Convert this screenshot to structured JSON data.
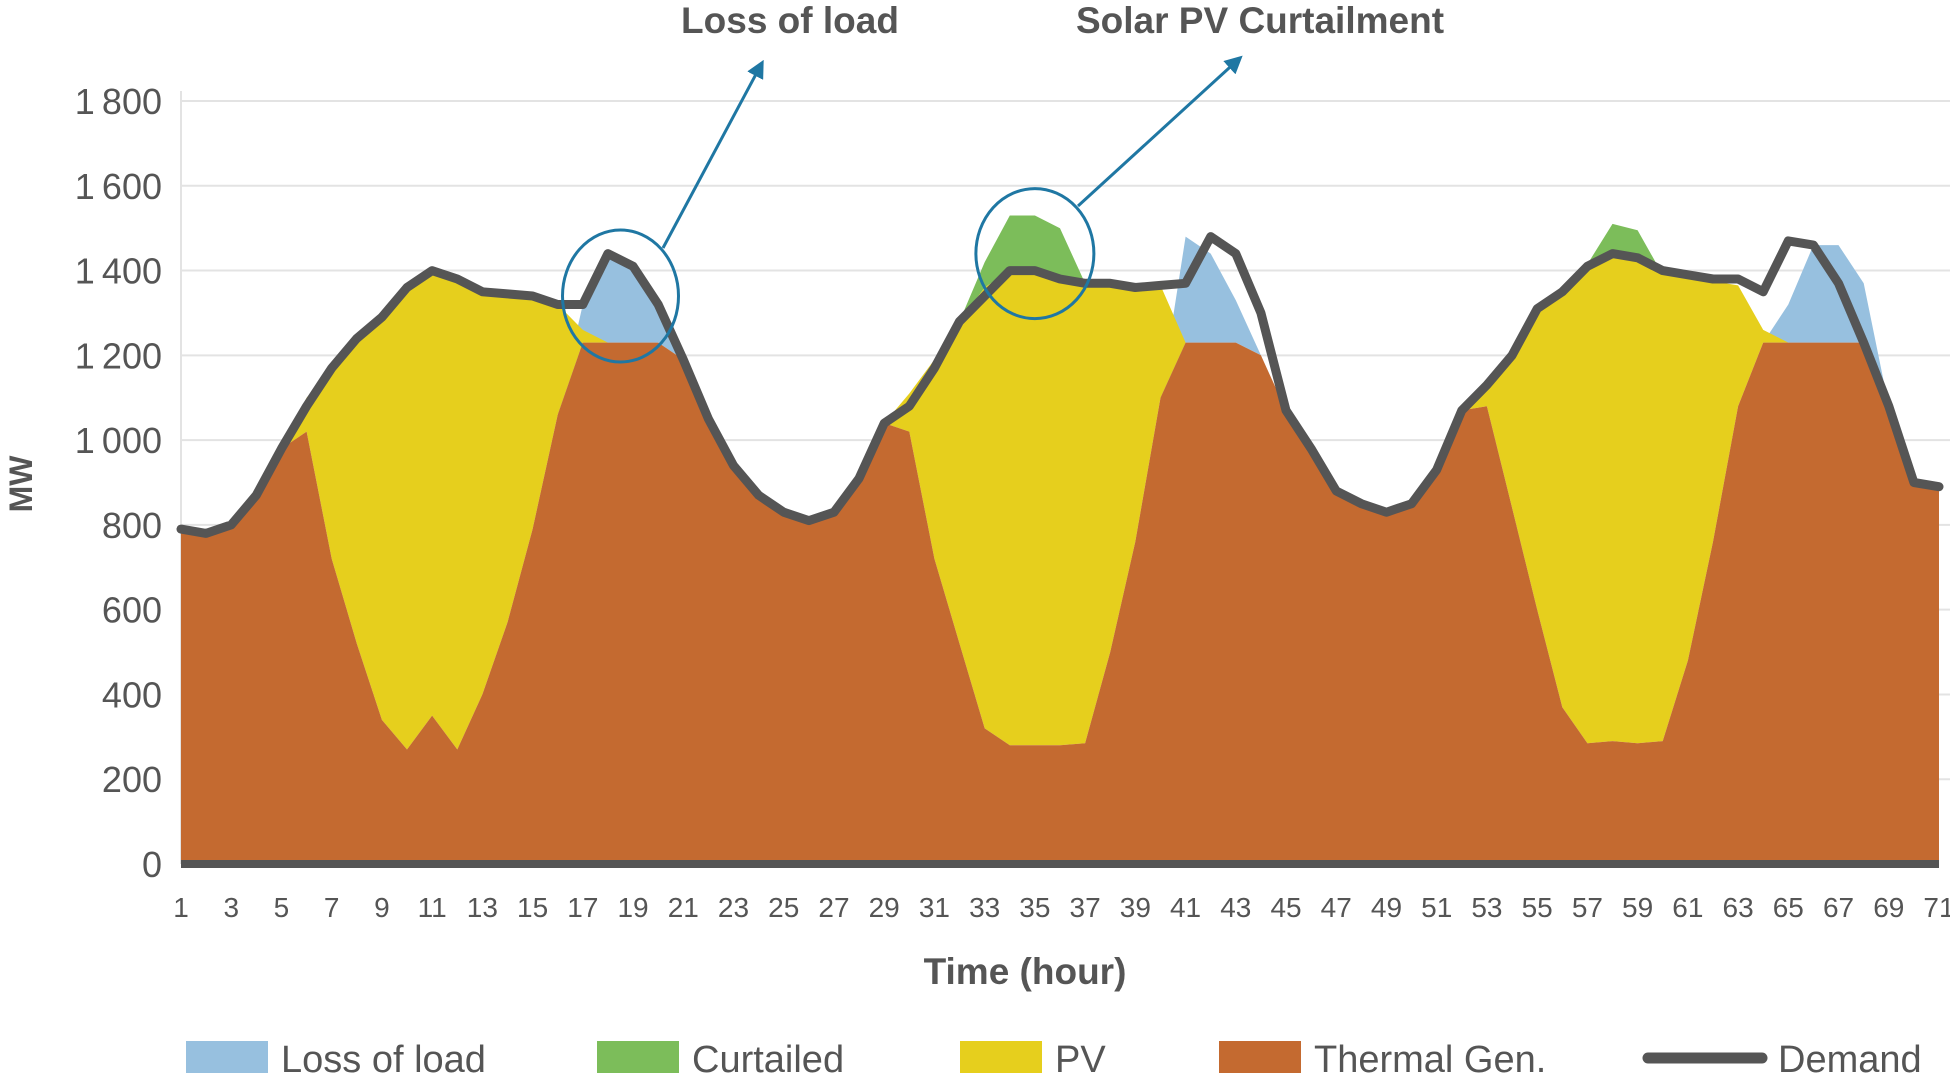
{
  "chart_data": {
    "type": "area",
    "xlabel": "Time (hour)",
    "ylabel": "MW",
    "xlim": [
      1,
      71
    ],
    "ylim": [
      0,
      1800
    ],
    "y_ticks": [
      0,
      200,
      400,
      600,
      800,
      1000,
      1200,
      1400,
      1600,
      1800
    ],
    "x_ticks": [
      1,
      3,
      5,
      7,
      9,
      11,
      13,
      15,
      17,
      19,
      21,
      23,
      25,
      27,
      29,
      31,
      33,
      35,
      37,
      39,
      41,
      43,
      45,
      47,
      49,
      51,
      53,
      55,
      57,
      59,
      61,
      63,
      65,
      67,
      69,
      71
    ],
    "grid": "horizontal",
    "legend_position": "bottom",
    "annotations": [
      {
        "text": "Loss of load",
        "x": 18.5,
        "y": 1340
      },
      {
        "text": "Solar PV Curtailment",
        "x": 35,
        "y": 1440
      }
    ],
    "x": [
      1,
      2,
      3,
      4,
      5,
      6,
      7,
      8,
      9,
      10,
      11,
      12,
      13,
      14,
      15,
      16,
      17,
      18,
      19,
      20,
      21,
      22,
      23,
      24,
      25,
      26,
      27,
      28,
      29,
      30,
      31,
      32,
      33,
      34,
      35,
      36,
      37,
      38,
      39,
      40,
      41,
      42,
      43,
      44,
      45,
      46,
      47,
      48,
      49,
      50,
      51,
      52,
      53,
      54,
      55,
      56,
      57,
      58,
      59,
      60,
      61,
      62,
      63,
      64,
      65,
      66,
      67,
      68,
      69,
      70,
      71
    ],
    "series": [
      {
        "name": "Thermal Gen.",
        "color": "#c46a30",
        "values": [
          790,
          780,
          800,
          870,
          980,
          1020,
          720,
          520,
          340,
          270,
          350,
          270,
          400,
          570,
          790,
          1060,
          1230,
          1230,
          1230,
          1230,
          1190,
          1050,
          940,
          870,
          830,
          810,
          830,
          910,
          1040,
          1020,
          720,
          520,
          320,
          280,
          280,
          280,
          285,
          500,
          760,
          1100,
          1230,
          1230,
          1230,
          1200,
          1070,
          980,
          880,
          850,
          830,
          850,
          930,
          1070,
          1080,
          840,
          600,
          370,
          285,
          290,
          285,
          290,
          480,
          760,
          1080,
          1230,
          1230,
          1230,
          1230,
          1230,
          1080,
          900,
          890
        ]
      },
      {
        "name": "PV",
        "color": "#e6cf1d",
        "values": [
          0,
          0,
          0,
          0,
          0,
          80,
          450,
          720,
          960,
          1090,
          1050,
          1110,
          950,
          780,
          550,
          260,
          30,
          0,
          0,
          0,
          0,
          0,
          0,
          0,
          0,
          0,
          0,
          0,
          0,
          90,
          470,
          760,
          1040,
          1120,
          1120,
          1100,
          1085,
          870,
          600,
          265,
          0,
          0,
          0,
          0,
          0,
          0,
          0,
          0,
          0,
          0,
          0,
          0,
          50,
          360,
          710,
          980,
          1130,
          1150,
          1140,
          1100,
          905,
          615,
          285,
          30,
          0,
          0,
          0,
          0,
          0,
          0,
          0
        ]
      },
      {
        "name": "Curtailed",
        "color": "#7cbd5a",
        "values": [
          0,
          0,
          0,
          0,
          0,
          0,
          0,
          0,
          0,
          0,
          0,
          0,
          0,
          0,
          0,
          0,
          0,
          0,
          0,
          0,
          0,
          0,
          0,
          0,
          0,
          0,
          0,
          0,
          0,
          0,
          0,
          0,
          60,
          130,
          130,
          120,
          0,
          0,
          0,
          0,
          0,
          0,
          0,
          0,
          0,
          0,
          0,
          0,
          0,
          0,
          0,
          0,
          0,
          0,
          0,
          0,
          0,
          70,
          70,
          0,
          0,
          0,
          0,
          0,
          0,
          0,
          0,
          0,
          0,
          0,
          0
        ]
      },
      {
        "name": "Loss of load",
        "color": "#97c0df",
        "values": [
          0,
          0,
          0,
          0,
          0,
          0,
          0,
          0,
          0,
          0,
          0,
          0,
          0,
          0,
          0,
          0,
          90,
          210,
          180,
          90,
          0,
          0,
          0,
          0,
          0,
          0,
          0,
          0,
          0,
          0,
          0,
          0,
          0,
          0,
          0,
          0,
          0,
          0,
          0,
          0,
          250,
          210,
          100,
          0,
          0,
          0,
          0,
          0,
          0,
          0,
          0,
          0,
          0,
          0,
          0,
          0,
          0,
          0,
          0,
          0,
          0,
          0,
          0,
          0,
          90,
          230,
          230,
          140,
          0,
          0,
          0
        ]
      },
      {
        "name": "Demand",
        "color": "#555555",
        "values": [
          790,
          780,
          800,
          870,
          980,
          1080,
          1170,
          1240,
          1290,
          1360,
          1400,
          1380,
          1350,
          1345,
          1340,
          1320,
          1320,
          1440,
          1410,
          1320,
          1190,
          1050,
          940,
          870,
          830,
          810,
          830,
          910,
          1040,
          1080,
          1170,
          1280,
          1340,
          1400,
          1400,
          1380,
          1370,
          1370,
          1360,
          1365,
          1370,
          1480,
          1440,
          1300,
          1070,
          980,
          880,
          850,
          830,
          850,
          930,
          1070,
          1130,
          1200,
          1310,
          1350,
          1410,
          1440,
          1430,
          1400,
          1390,
          1380,
          1380,
          1350,
          1470,
          1460,
          1370,
          1230,
          1080,
          900,
          890
        ]
      }
    ]
  }
}
